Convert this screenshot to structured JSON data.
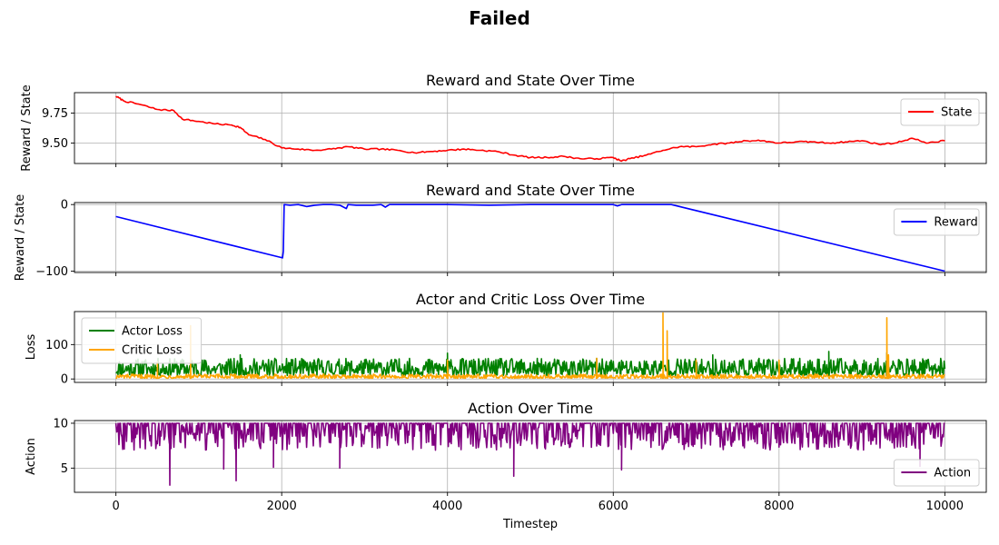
{
  "figure": {
    "title": "Failed"
  },
  "chart_data": [
    {
      "type": "line",
      "title": "Reward and State Over Time",
      "ylabel": "Reward / State",
      "xlabel": "",
      "xlim": [
        -500,
        10500
      ],
      "ylim": [
        9.33,
        9.92
      ],
      "xticks": [
        0,
        2000,
        4000,
        6000,
        8000,
        10000
      ],
      "yticks": [
        9.5,
        9.75
      ],
      "ytick_labels": [
        "9.50",
        "9.75"
      ],
      "grid": true,
      "legend_position": "upper-right",
      "series": [
        {
          "name": "State",
          "color": "#ff0000",
          "x": [
            0,
            100,
            300,
            500,
            700,
            800,
            1000,
            1200,
            1400,
            1500,
            1600,
            1800,
            2000,
            2200,
            2400,
            2600,
            2800,
            3000,
            3200,
            3400,
            3600,
            3800,
            4000,
            4200,
            4400,
            4600,
            4800,
            5000,
            5200,
            5400,
            5600,
            5800,
            6000,
            6100,
            6200,
            6400,
            6600,
            6800,
            7000,
            7200,
            7400,
            7600,
            7800,
            8000,
            8200,
            8400,
            8600,
            8800,
            9000,
            9200,
            9400,
            9600,
            9800,
            10000
          ],
          "y": [
            9.89,
            9.85,
            9.82,
            9.78,
            9.77,
            9.7,
            9.68,
            9.66,
            9.65,
            9.63,
            9.57,
            9.53,
            9.46,
            9.45,
            9.44,
            9.45,
            9.47,
            9.45,
            9.45,
            9.44,
            9.42,
            9.43,
            9.44,
            9.45,
            9.44,
            9.43,
            9.4,
            9.38,
            9.38,
            9.39,
            9.37,
            9.37,
            9.38,
            9.35,
            9.37,
            9.4,
            9.44,
            9.47,
            9.47,
            9.49,
            9.5,
            9.52,
            9.52,
            9.5,
            9.51,
            9.51,
            9.5,
            9.51,
            9.52,
            9.49,
            9.5,
            9.54,
            9.5,
            9.52
          ]
        }
      ]
    },
    {
      "type": "line",
      "title": "Reward and State Over Time",
      "ylabel": "Reward / State",
      "xlabel": "",
      "xlim": [
        -500,
        10500
      ],
      "ylim": [
        -102,
        3
      ],
      "xticks": [
        0,
        2000,
        4000,
        6000,
        8000,
        10000
      ],
      "yticks": [
        0,
        -100
      ],
      "ytick_labels": [
        "0",
        "−100"
      ],
      "grid": true,
      "legend_position": "upper-right",
      "series": [
        {
          "name": "Reward",
          "color": "#0000ff",
          "x": [
            0,
            2010,
            2020,
            2030,
            2100,
            2200,
            2300,
            2400,
            2500,
            2600,
            2700,
            2780,
            2800,
            2900,
            3000,
            3100,
            3200,
            3250,
            3300,
            3500,
            4000,
            4500,
            5000,
            5500,
            6000,
            6050,
            6100,
            6500,
            6700,
            10000
          ],
          "y": [
            -18,
            -80,
            -70,
            0,
            -1,
            0,
            -3,
            -1,
            0,
            0,
            -1,
            -6,
            0,
            -1,
            -1,
            -1,
            0,
            -4,
            0,
            0,
            0,
            -1,
            0,
            0,
            0,
            -2,
            0,
            0,
            0,
            -100
          ]
        }
      ]
    },
    {
      "type": "line",
      "title": "Actor and Critic Loss Over Time",
      "ylabel": "Loss",
      "xlabel": "",
      "xlim": [
        -500,
        10500
      ],
      "ylim": [
        -10,
        196
      ],
      "xticks": [
        0,
        2000,
        4000,
        6000,
        8000,
        10000
      ],
      "yticks": [
        0,
        100
      ],
      "ytick_labels": [
        "0",
        "100"
      ],
      "grid": true,
      "legend_position": "upper-left",
      "noise_seed": 11,
      "series": [
        {
          "name": "Actor Loss",
          "color": "#008000",
          "x_range": [
            0,
            10000
          ],
          "points": 1200,
          "base": 10,
          "amplitude": 50,
          "spikes": [
            [
              1500,
              70
            ],
            [
              4000,
              75
            ],
            [
              7200,
              70
            ],
            [
              8600,
              80
            ],
            [
              9300,
              76
            ]
          ]
        },
        {
          "name": "Critic Loss",
          "color": "#ffa500",
          "x_range": [
            0,
            10000
          ],
          "points": 1200,
          "base": 2,
          "amplitude": 12,
          "spikes": [
            [
              500,
              50
            ],
            [
              900,
              155
            ],
            [
              4000,
              55
            ],
            [
              5800,
              60
            ],
            [
              6600,
              192
            ],
            [
              6650,
              140
            ],
            [
              7000,
              55
            ],
            [
              8000,
              55
            ],
            [
              9300,
              178
            ],
            [
              9320,
              70
            ]
          ]
        }
      ]
    },
    {
      "type": "line",
      "title": "Action Over Time",
      "ylabel": "Action",
      "xlabel": "Timestep",
      "xlim": [
        -500,
        10500
      ],
      "ylim": [
        2.3,
        10.3
      ],
      "xticks": [
        0,
        2000,
        4000,
        6000,
        8000,
        10000
      ],
      "xtick_labels": [
        "0",
        "2000",
        "4000",
        "6000",
        "8000",
        "10000"
      ],
      "yticks": [
        5,
        10
      ],
      "ytick_labels": [
        "5",
        "10"
      ],
      "grid": true,
      "legend_position": "lower-right",
      "noise_seed": 29,
      "series": [
        {
          "name": "Action",
          "color": "#800080",
          "x_range": [
            0,
            10000
          ],
          "points": 1100,
          "base": 10,
          "min_typical": 7,
          "dips": [
            [
              650,
              3.1
            ],
            [
              1450,
              3.6
            ],
            [
              1300,
              4.9
            ],
            [
              4800,
              4.1
            ],
            [
              6100,
              4.8
            ],
            [
              1900,
              5.1
            ],
            [
              2700,
              5.0
            ],
            [
              9700,
              5.2
            ]
          ]
        }
      ]
    }
  ]
}
